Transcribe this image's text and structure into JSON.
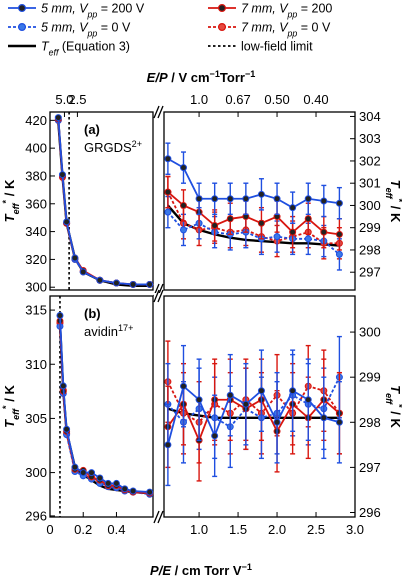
{
  "chart_data": {
    "type": "line",
    "legend": {
      "placement": "top",
      "entries": [
        {
          "key": "a",
          "label": "5 mm, V",
          "sub": "pp",
          "rest": " = 200 V",
          "color": "#1f4fe0",
          "dash": "solid",
          "marker": "#222222"
        },
        {
          "key": "b",
          "label": "7 mm, V",
          "sub": "pp",
          "rest": " = 200",
          "color": "#d8160f",
          "dash": "solid",
          "marker": "#222222"
        },
        {
          "key": "c",
          "label": "5 mm, V",
          "sub": "pp",
          "rest": " = 0 V",
          "color": "#1f4fe0",
          "dash": "dotted",
          "marker": "#3a78e8"
        },
        {
          "key": "d",
          "label": "7 mm, V",
          "sub": "pp",
          "rest": " = 0 V",
          "color": "#d8160f",
          "dash": "dotted",
          "marker": "#e64a3f"
        },
        {
          "key": "model",
          "label": "T",
          "sub": "eff",
          "rest": " (Equation 3)",
          "color": "#000000",
          "dash": "solid",
          "marker": ""
        },
        {
          "key": "lowfield",
          "label": "low-field limit",
          "sub": "",
          "rest": "",
          "color": "#000000",
          "dash": "dotted",
          "marker": ""
        }
      ]
    },
    "x_bottom": {
      "label_main": "P/E",
      "label_unit": " / cm Torr V",
      "label_sup": "−1",
      "ticks_left": [
        "0",
        "0.2",
        "0.4"
      ],
      "ticks_right": [
        "1.0",
        "1.5",
        "2.0",
        "2.5",
        "3.0"
      ],
      "left_range": [
        0,
        0.62
      ],
      "right_range": [
        0.55,
        3.0
      ]
    },
    "x_top": {
      "label_main": "E/P",
      "label_unit": " / V cm",
      "label_sup1": "−1",
      "label_mid": "Torr",
      "label_sup2": "−1",
      "ticks_left": [
        "5.0",
        "2.5"
      ],
      "ticks_right": [
        "1.0",
        "0.67",
        "0.50",
        "0.40"
      ]
    },
    "panels": [
      {
        "id": "a",
        "label": "(a)",
        "analyte": "GRGDS",
        "charge": "2+",
        "y_left": {
          "label": "T",
          "label_sub": "eff",
          "label_sup": "*",
          "unit": " / K",
          "range": [
            298,
            426
          ],
          "ticks": [
            "300",
            "320",
            "340",
            "360",
            "380",
            "400",
            "420"
          ]
        },
        "y_right": {
          "label": "T",
          "label_sub": "eff",
          "label_sup": "*",
          "unit": " / K",
          "range": [
            296.2,
            304.2
          ],
          "ticks": [
            "297",
            "298",
            "299",
            "300",
            "301",
            "302",
            "303",
            "304"
          ]
        },
        "low_field_limit_x": 0.115,
        "left": {
          "x": [
            0.05,
            0.075,
            0.1,
            0.15,
            0.2,
            0.3,
            0.4,
            0.5,
            0.6
          ],
          "series": {
            "a": [
              422,
              381,
              347,
              321,
              311,
              305,
              303,
              302,
              302
            ],
            "b": [
              421,
              380,
              346,
              321,
              312,
              305,
              303,
              302,
              302
            ],
            "c": [
              420,
              380,
              346,
              320,
              311,
              305,
              303,
              302,
              302
            ],
            "d": [
              420,
              379,
              346,
              320,
              311,
              305,
              303,
              302,
              302
            ],
            "model": [
              419,
              380,
              346,
              321,
              311,
              305,
              302,
              301,
              301
            ]
          }
        },
        "right": {
          "x": [
            0.6,
            0.8,
            1.0,
            1.2,
            1.4,
            1.6,
            1.8,
            2.0,
            2.2,
            2.4,
            2.6,
            2.8
          ],
          "series": {
            "a": {
              "y": [
                302.1,
                301.7,
                300.3,
                300.3,
                300.3,
                300.3,
                300.5,
                300.3,
                299.9,
                300.3,
                300.2,
                300.1
              ],
              "err": [
                0.7,
                0.7,
                0.7,
                0.7,
                0.7,
                0.7,
                0.7,
                0.7,
                0.7,
                0.7,
                0.7,
                0.7
              ]
            },
            "b": {
              "y": [
                300.6,
                300.0,
                299.7,
                299.1,
                299.4,
                299.5,
                299.2,
                299.5,
                298.8,
                299.4,
                298.8,
                298.7
              ],
              "err": [
                0.7,
                0.7,
                0.7,
                0.7,
                0.7,
                0.7,
                0.7,
                0.7,
                0.7,
                0.7,
                0.7,
                0.7
              ]
            },
            "c": {
              "y": [
                299.7,
                298.9,
                299.2,
                298.8,
                298.7,
                298.8,
                298.5,
                298.6,
                298.5,
                298.5,
                298.4,
                297.8
              ],
              "err": [
                0.7,
                0.7,
                0.7,
                0.7,
                0.7,
                0.7,
                0.7,
                0.7,
                0.7,
                0.7,
                0.7,
                0.7
              ]
            },
            "d": {
              "y": [
                300.6,
                299.2,
                298.9,
                299.0,
                298.8,
                298.9,
                298.6,
                298.4,
                298.6,
                298.8,
                298.3,
                298.3
              ],
              "err": [
                0.7,
                0.7,
                0.7,
                0.7,
                0.7,
                0.7,
                0.7,
                0.7,
                0.7,
                0.7,
                0.7,
                0.7
              ]
            },
            "model": {
              "y": [
                300.0,
                299.2,
                298.9,
                298.7,
                298.55,
                298.45,
                298.4,
                298.35,
                298.3,
                298.3,
                298.25,
                298.2
              ]
            }
          }
        }
      },
      {
        "id": "b",
        "label": "(b)",
        "analyte": "avidin",
        "charge": "17+",
        "y_left": {
          "label": "T",
          "label_sub": "eff",
          "label_sup": "*",
          "unit": " / K",
          "range": [
            295.9,
            316.3
          ],
          "ticks": [
            "296",
            "300",
            "305",
            "310",
            "315"
          ]
        },
        "y_right": {
          "label": "T",
          "label_sub": "eff",
          "label_sup": "*",
          "unit": " / K",
          "range": [
            295.9,
            300.8
          ],
          "ticks": [
            "296",
            "297",
            "298",
            "299",
            "300"
          ]
        },
        "low_field_limit_x": 0.06,
        "left": {
          "x": [
            0.06,
            0.08,
            0.1,
            0.15,
            0.2,
            0.25,
            0.3,
            0.35,
            0.4,
            0.45,
            0.5,
            0.6
          ],
          "series": {
            "a": [
              314.5,
              308.0,
              304.0,
              300.5,
              300.0,
              300.0,
              299.5,
              299.0,
              299.0,
              298.5,
              298.3,
              298.2
            ],
            "b": [
              314.0,
              307.5,
              303.8,
              300.3,
              300.2,
              299.6,
              299.3,
              298.8,
              298.8,
              298.4,
              298.2,
              298.1
            ],
            "c": [
              313.5,
              307.3,
              303.5,
              300.1,
              299.7,
              299.4,
              299.0,
              298.7,
              298.6,
              298.3,
              298.2,
              298.0
            ],
            "d": [
              313.8,
              307.6,
              303.6,
              300.2,
              299.8,
              299.5,
              299.2,
              298.7,
              298.6,
              298.4,
              298.2,
              298.1
            ],
            "model": [
              313.8,
              307.5,
              303.8,
              300.5,
              299.8,
              299.3,
              298.8,
              298.5,
              298.4,
              298.3,
              298.2,
              298.1
            ]
          }
        },
        "right": {
          "x": [
            0.6,
            0.8,
            1.0,
            1.2,
            1.4,
            1.6,
            1.8,
            2.0,
            2.2,
            2.4,
            2.6,
            2.8
          ],
          "series": {
            "a": {
              "y": [
                297.5,
                298.8,
                298.5,
                297.7,
                298.6,
                298.4,
                298.7,
                298.0,
                298.7,
                298.5,
                298.1,
                298.0
              ],
              "err": [
                0.9,
                0.9,
                0.9,
                0.9,
                0.9,
                0.9,
                0.9,
                0.9,
                0.9,
                0.9,
                0.9,
                0.9
              ]
            },
            "b": {
              "y": [
                297.9,
                298.4,
                297.6,
                298.5,
                298.5,
                298.3,
                298.5,
                297.8,
                298.4,
                298.1,
                298.5,
                298.2
              ],
              "err": [
                0.9,
                0.9,
                0.9,
                0.9,
                0.9,
                0.9,
                0.9,
                0.9,
                0.9,
                0.9,
                0.9,
                0.9
              ]
            },
            "c": {
              "y": [
                298.4,
                298.0,
                298.3,
                298.1,
                297.9,
                298.3,
                298.1,
                298.2,
                298.6,
                298.4,
                298.3,
                299.0
              ],
              "err": [
                0.9,
                0.9,
                0.9,
                0.9,
                0.9,
                0.9,
                0.9,
                0.9,
                0.9,
                0.9,
                0.9,
                0.9
              ]
            },
            "d": {
              "y": [
                298.9,
                298.2,
                298.0,
                298.4,
                298.2,
                298.5,
                298.2,
                298.6,
                298.2,
                298.8,
                298.7,
                298.2
              ],
              "err": [
                0.9,
                0.9,
                0.9,
                0.9,
                0.9,
                0.9,
                0.9,
                0.9,
                0.9,
                0.9,
                0.9,
                0.9
              ]
            },
            "model": {
              "y": [
                298.3,
                298.2,
                298.15,
                298.1,
                298.1,
                298.1,
                298.1,
                298.1,
                298.1,
                298.1,
                298.1,
                298.1
              ]
            }
          }
        }
      }
    ]
  }
}
